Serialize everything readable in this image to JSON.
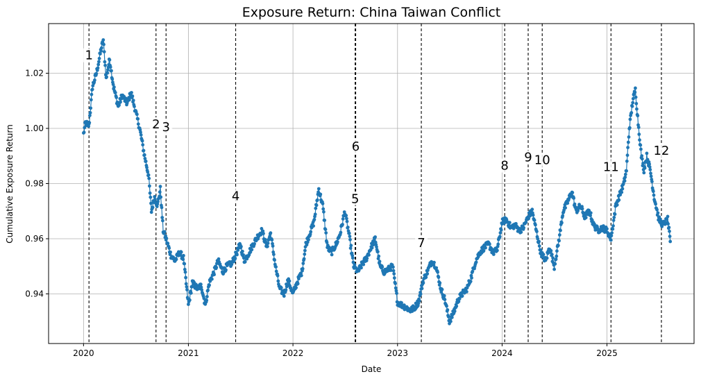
{
  "chart_data": {
    "type": "line",
    "title": "Exposure Return: China Taiwan Conflict",
    "xlabel": "Date",
    "ylabel": "Cumulative Exposure Return",
    "x_axis_type": "date",
    "xlim": [
      "2019-09-01",
      "2025-11-01"
    ],
    "ylim": [
      0.922,
      1.038
    ],
    "x_ticks": [
      {
        "value": "2020-01-01",
        "label": "2020"
      },
      {
        "value": "2021-01-01",
        "label": "2021"
      },
      {
        "value": "2022-01-01",
        "label": "2022"
      },
      {
        "value": "2023-01-01",
        "label": "2023"
      },
      {
        "value": "2024-01-01",
        "label": "2024"
      },
      {
        "value": "2025-01-01",
        "label": "2025"
      }
    ],
    "y_ticks": [
      {
        "value": 0.94,
        "label": "0.94"
      },
      {
        "value": 0.96,
        "label": "0.96"
      },
      {
        "value": 0.98,
        "label": "0.98"
      },
      {
        "value": 1.0,
        "label": "1.00"
      },
      {
        "value": 1.02,
        "label": "1.02"
      }
    ],
    "grid": true,
    "series_color": "#1f77b4",
    "marker": "circle",
    "series": [
      {
        "points": [
          [
            "2020-01-01",
            0.998
          ],
          [
            "2020-01-08",
            1.002
          ],
          [
            "2020-01-20",
            1.001
          ],
          [
            "2020-02-01",
            1.015
          ],
          [
            "2020-02-15",
            1.02
          ],
          [
            "2020-03-01",
            1.028
          ],
          [
            "2020-03-10",
            1.032
          ],
          [
            "2020-03-20",
            1.018
          ],
          [
            "2020-04-01",
            1.025
          ],
          [
            "2020-04-15",
            1.015
          ],
          [
            "2020-05-01",
            1.008
          ],
          [
            "2020-05-15",
            1.012
          ],
          [
            "2020-06-01",
            1.009
          ],
          [
            "2020-06-15",
            1.013
          ],
          [
            "2020-07-01",
            1.006
          ],
          [
            "2020-07-15",
            1.0
          ],
          [
            "2020-08-01",
            0.99
          ],
          [
            "2020-08-15",
            0.983
          ],
          [
            "2020-08-25",
            0.97
          ],
          [
            "2020-09-05",
            0.975
          ],
          [
            "2020-09-15",
            0.972
          ],
          [
            "2020-09-25",
            0.978
          ],
          [
            "2020-10-05",
            0.963
          ],
          [
            "2020-10-15",
            0.96
          ],
          [
            "2020-11-01",
            0.954
          ],
          [
            "2020-11-15",
            0.952
          ],
          [
            "2020-12-01",
            0.955
          ],
          [
            "2020-12-15",
            0.953
          ],
          [
            "2021-01-01",
            0.936
          ],
          [
            "2021-01-15",
            0.944
          ],
          [
            "2021-02-01",
            0.942
          ],
          [
            "2021-02-15",
            0.943
          ],
          [
            "2021-03-01",
            0.936
          ],
          [
            "2021-03-15",
            0.944
          ],
          [
            "2021-04-01",
            0.948
          ],
          [
            "2021-04-15",
            0.952
          ],
          [
            "2021-05-01",
            0.948
          ],
          [
            "2021-05-15",
            0.95
          ],
          [
            "2021-06-01",
            0.951
          ],
          [
            "2021-06-15",
            0.954
          ],
          [
            "2021-07-01",
            0.958
          ],
          [
            "2021-07-15",
            0.952
          ],
          [
            "2021-08-01",
            0.955
          ],
          [
            "2021-08-15",
            0.958
          ],
          [
            "2021-09-01",
            0.961
          ],
          [
            "2021-09-15",
            0.963
          ],
          [
            "2021-10-01",
            0.957
          ],
          [
            "2021-10-15",
            0.962
          ],
          [
            "2021-11-01",
            0.95
          ],
          [
            "2021-11-15",
            0.942
          ],
          [
            "2021-12-01",
            0.94
          ],
          [
            "2021-12-15",
            0.945
          ],
          [
            "2022-01-01",
            0.94
          ],
          [
            "2022-01-15",
            0.944
          ],
          [
            "2022-02-01",
            0.948
          ],
          [
            "2022-02-15",
            0.958
          ],
          [
            "2022-03-01",
            0.962
          ],
          [
            "2022-03-15",
            0.966
          ],
          [
            "2022-04-01",
            0.978
          ],
          [
            "2022-04-15",
            0.972
          ],
          [
            "2022-05-01",
            0.957
          ],
          [
            "2022-05-15",
            0.955
          ],
          [
            "2022-06-01",
            0.958
          ],
          [
            "2022-06-15",
            0.962
          ],
          [
            "2022-07-01",
            0.97
          ],
          [
            "2022-07-15",
            0.962
          ],
          [
            "2022-08-01",
            0.95
          ],
          [
            "2022-08-15",
            0.948
          ],
          [
            "2022-09-01",
            0.951
          ],
          [
            "2022-09-15",
            0.953
          ],
          [
            "2022-10-01",
            0.957
          ],
          [
            "2022-10-15",
            0.96
          ],
          [
            "2022-11-01",
            0.95
          ],
          [
            "2022-11-15",
            0.948
          ],
          [
            "2022-12-01",
            0.949
          ],
          [
            "2022-12-15",
            0.95
          ],
          [
            "2023-01-01",
            0.937
          ],
          [
            "2023-01-15",
            0.936
          ],
          [
            "2023-02-01",
            0.935
          ],
          [
            "2023-02-15",
            0.934
          ],
          [
            "2023-03-01",
            0.935
          ],
          [
            "2023-03-15",
            0.937
          ],
          [
            "2023-04-01",
            0.945
          ],
          [
            "2023-04-15",
            0.948
          ],
          [
            "2023-05-01",
            0.952
          ],
          [
            "2023-05-15",
            0.95
          ],
          [
            "2023-06-01",
            0.942
          ],
          [
            "2023-06-15",
            0.938
          ],
          [
            "2023-07-01",
            0.93
          ],
          [
            "2023-07-15",
            0.933
          ],
          [
            "2023-08-01",
            0.938
          ],
          [
            "2023-08-15",
            0.94
          ],
          [
            "2023-09-01",
            0.942
          ],
          [
            "2023-09-15",
            0.946
          ],
          [
            "2023-10-01",
            0.952
          ],
          [
            "2023-10-15",
            0.955
          ],
          [
            "2023-11-01",
            0.957
          ],
          [
            "2023-11-15",
            0.958
          ],
          [
            "2023-12-01",
            0.955
          ],
          [
            "2023-12-15",
            0.956
          ],
          [
            "2024-01-01",
            0.966
          ],
          [
            "2024-01-15",
            0.967
          ],
          [
            "2024-02-01",
            0.964
          ],
          [
            "2024-02-15",
            0.965
          ],
          [
            "2024-03-01",
            0.963
          ],
          [
            "2024-03-15",
            0.964
          ],
          [
            "2024-04-01",
            0.968
          ],
          [
            "2024-04-15",
            0.97
          ],
          [
            "2024-05-01",
            0.962
          ],
          [
            "2024-05-15",
            0.955
          ],
          [
            "2024-06-01",
            0.952
          ],
          [
            "2024-06-15",
            0.957
          ],
          [
            "2024-07-01",
            0.95
          ],
          [
            "2024-07-15",
            0.958
          ],
          [
            "2024-08-01",
            0.97
          ],
          [
            "2024-08-15",
            0.973
          ],
          [
            "2024-09-01",
            0.977
          ],
          [
            "2024-09-15",
            0.97
          ],
          [
            "2024-10-01",
            0.972
          ],
          [
            "2024-10-15",
            0.968
          ],
          [
            "2024-11-01",
            0.97
          ],
          [
            "2024-11-15",
            0.965
          ],
          [
            "2024-12-01",
            0.963
          ],
          [
            "2024-12-15",
            0.964
          ],
          [
            "2025-01-01",
            0.963
          ],
          [
            "2025-01-15",
            0.96
          ],
          [
            "2025-02-01",
            0.972
          ],
          [
            "2025-02-15",
            0.976
          ],
          [
            "2025-03-01",
            0.98
          ],
          [
            "2025-03-10",
            0.985
          ],
          [
            "2025-03-20",
            1.0
          ],
          [
            "2025-04-01",
            1.01
          ],
          [
            "2025-04-10",
            1.014
          ],
          [
            "2025-04-20",
            1.002
          ],
          [
            "2025-05-01",
            0.99
          ],
          [
            "2025-05-10",
            0.985
          ],
          [
            "2025-05-20",
            0.99
          ],
          [
            "2025-06-01",
            0.985
          ],
          [
            "2025-06-15",
            0.975
          ],
          [
            "2025-07-01",
            0.967
          ],
          [
            "2025-07-15",
            0.965
          ],
          [
            "2025-08-01",
            0.967
          ],
          [
            "2025-08-10",
            0.959
          ]
        ]
      }
    ],
    "events": [
      {
        "label": "1",
        "date": "2020-01-20",
        "label_y": 1.025
      },
      {
        "label": "2",
        "date": "2020-09-10",
        "label_y": 1.0
      },
      {
        "label": "3",
        "date": "2020-10-15",
        "label_y": 0.999
      },
      {
        "label": "4",
        "date": "2021-06-15",
        "label_y": 0.974
      },
      {
        "label": "5",
        "date": "2022-08-06",
        "label_y": 0.973
      },
      {
        "label": "6",
        "date": "2022-08-08",
        "label_y": 0.992
      },
      {
        "label": "7",
        "date": "2023-03-25",
        "label_y": 0.957
      },
      {
        "label": "8",
        "date": "2024-01-10",
        "label_y": 0.985
      },
      {
        "label": "9",
        "date": "2024-04-01",
        "label_y": 0.988
      },
      {
        "label": "10",
        "date": "2024-05-20",
        "label_y": 0.987
      },
      {
        "label": "11",
        "date": "2025-01-15",
        "label_y": 0.9845
      },
      {
        "label": "12",
        "date": "2025-07-10",
        "label_y": 0.9905
      }
    ]
  }
}
